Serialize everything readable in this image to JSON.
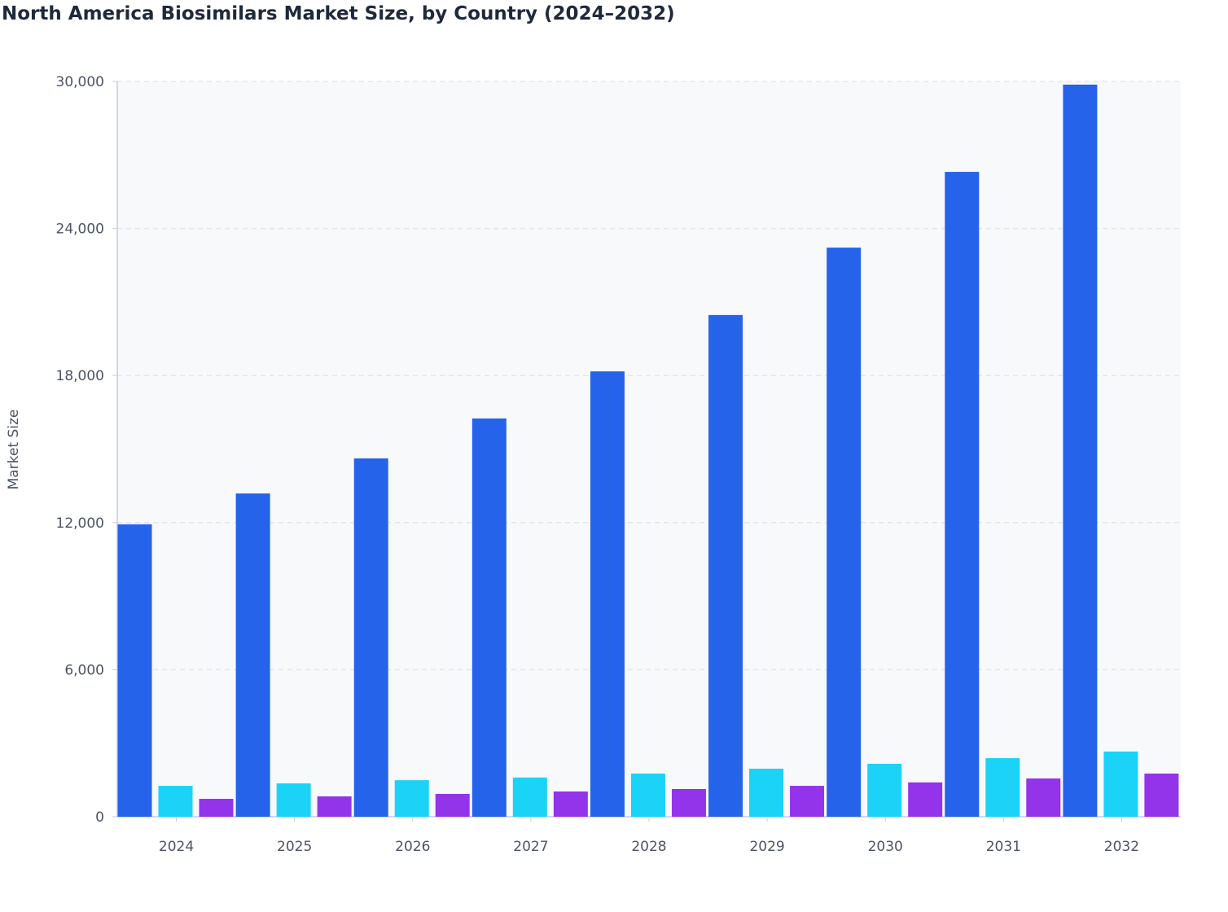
{
  "chart_data": {
    "type": "bar",
    "title": "North America Biosimilars Market Size, by Country (2024–2032)",
    "xlabel": "",
    "ylabel": "Market Size",
    "ylim": [
      0,
      30000
    ],
    "yticks": [
      0,
      6000,
      12000,
      18000,
      24000,
      30000
    ],
    "ytick_labels": [
      "0",
      "6,000",
      "12,000",
      "18,000",
      "24,000",
      "30,000"
    ],
    "grid": true,
    "legend": "none",
    "categories": [
      "2024",
      "2025",
      "2026",
      "2027",
      "2028",
      "2029",
      "2030",
      "2031",
      "2032"
    ],
    "series": [
      {
        "color": "#2563eb",
        "values": [
          11930,
          13190,
          14620,
          16250,
          18170,
          20470,
          23220,
          26310,
          29870
        ]
      },
      {
        "color": "#1ad3f7",
        "values": [
          1260,
          1360,
          1490,
          1600,
          1760,
          1960,
          2160,
          2390,
          2660
        ]
      },
      {
        "color": "#9333ea",
        "values": [
          730,
          830,
          930,
          1030,
          1130,
          1260,
          1400,
          1560,
          1760
        ]
      }
    ]
  }
}
